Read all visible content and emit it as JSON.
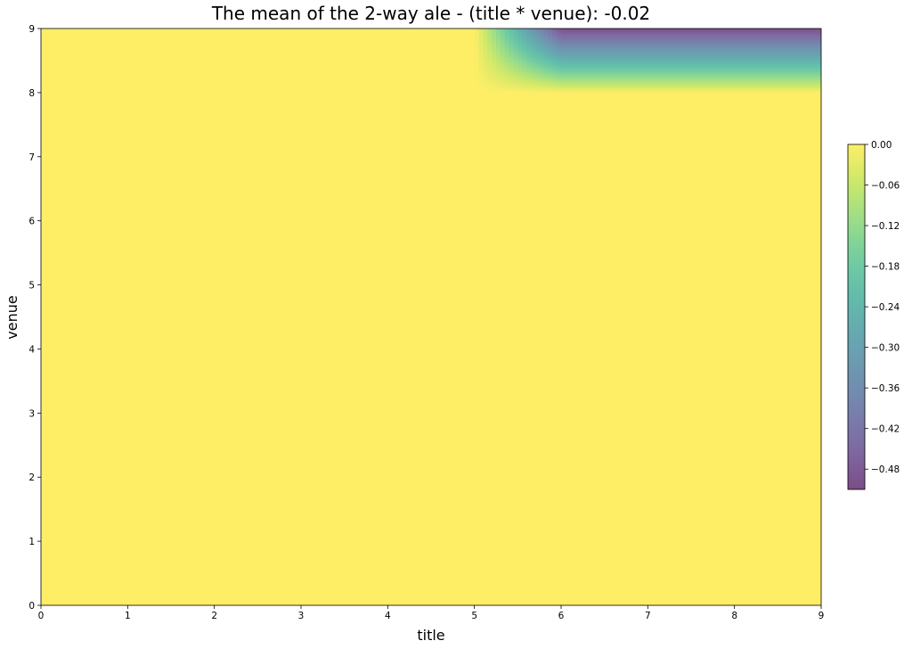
{
  "chart_data": {
    "type": "heatmap",
    "title": "The mean of the 2-way ale - (title * venue): -0.02",
    "xlabel": "title",
    "ylabel": "venue",
    "xlim": [
      0,
      9
    ],
    "ylim": [
      0,
      9
    ],
    "x_ticks": [
      "0",
      "1",
      "2",
      "3",
      "4",
      "5",
      "6",
      "7",
      "8",
      "9"
    ],
    "y_ticks": [
      "0",
      "1",
      "2",
      "3",
      "4",
      "5",
      "6",
      "7",
      "8",
      "9"
    ],
    "colormap": "viridis",
    "colormap_alpha": 0.7,
    "colorbar": {
      "range": [
        -0.51,
        0.0
      ],
      "ticks": [
        "0.00",
        "−0.06",
        "−0.12",
        "−0.18",
        "−0.24",
        "−0.30",
        "−0.36",
        "−0.42",
        "−0.48"
      ],
      "tick_values": [
        0.0,
        -0.06,
        -0.12,
        -0.18,
        -0.24,
        -0.3,
        -0.36,
        -0.42,
        -0.48
      ]
    },
    "grid": {
      "x": [
        0,
        5,
        6,
        9
      ],
      "y": [
        0,
        8,
        9
      ],
      "z": [
        [
          0,
          0,
          0,
          0
        ],
        [
          0,
          0,
          0,
          0
        ],
        [
          0,
          0,
          -0.5,
          -0.5
        ]
      ]
    }
  }
}
